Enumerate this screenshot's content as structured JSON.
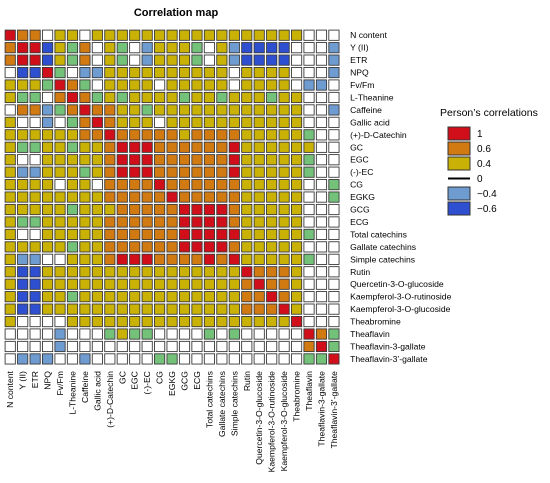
{
  "chart_data": {
    "type": "heatmap",
    "title": "Correlation map",
    "legend": {
      "title": "Person’s correlations",
      "position": "right",
      "entries": [
        {
          "label": "1",
          "color": "#d10f1b"
        },
        {
          "label": "0.6",
          "color": "#d27a12"
        },
        {
          "label": "0.4",
          "color": "#c9b205"
        },
        {
          "label": "0",
          "color": "#ffffff"
        },
        {
          "label": "−0.4",
          "color": "#6e9bd0"
        },
        {
          "label": "−0.6",
          "color": "#2f4fd1"
        }
      ]
    },
    "variables": [
      "N content",
      "Y (II)",
      "ETR",
      "NPQ",
      "Fv/Fm",
      "L-Theanine",
      "Caffeine",
      "Gallic acid",
      "(+)-D-Catechin",
      "GC",
      "EGC",
      "(-)-EC",
      "CG",
      "EGKG",
      "GCG",
      "ECG",
      "Total catechins",
      "Gallate catechins",
      "Simple catechins",
      "Rutin",
      "Quercetin-3-O-glucoside",
      "Kaempferol-3-O-rutinoside",
      "Kaempferol-3-O-glucoside",
      "Theabromine",
      "Theaflavin",
      "Theaflavin-3-gallate",
      "Theaflavin-3’-gallate"
    ],
    "matrix": [
      [
        1.0,
        0.6,
        0.6,
        0.0,
        0.45,
        0.45,
        0.0,
        0.5,
        0.5,
        0.45,
        0.5,
        0.45,
        0.5,
        0.5,
        0.45,
        0.45,
        0.5,
        0.5,
        0.45,
        0.5,
        0.5,
        0.5,
        0.45,
        0.5,
        0.0,
        0.0,
        0.0
      ],
      [
        0.6,
        1.0,
        1.0,
        -0.5,
        0.45,
        0.3,
        0.6,
        0.0,
        0.45,
        0.3,
        0.0,
        -0.3,
        0.4,
        0.45,
        0.45,
        0.3,
        0.0,
        0.45,
        -0.3,
        -0.45,
        -0.45,
        -0.6,
        -0.5,
        0.0,
        0.0,
        0.0,
        -0.3
      ],
      [
        0.6,
        1.0,
        1.0,
        -0.5,
        0.45,
        0.3,
        0.6,
        0.0,
        0.45,
        0.3,
        0.0,
        -0.3,
        0.4,
        0.45,
        0.45,
        0.3,
        0.0,
        0.45,
        -0.3,
        -0.45,
        -0.45,
        -0.6,
        -0.5,
        0.0,
        0.0,
        0.0,
        -0.3
      ],
      [
        0.0,
        -0.5,
        -0.5,
        1.0,
        0.3,
        0.0,
        -0.3,
        -0.3,
        0.4,
        0.45,
        0.45,
        0.4,
        0.45,
        0.45,
        0.45,
        0.4,
        0.45,
        0.45,
        0.0,
        0.45,
        0.45,
        0.45,
        0.45,
        0.0,
        0.0,
        0.0,
        -0.3
      ],
      [
        0.45,
        0.45,
        0.45,
        0.3,
        1.0,
        0.6,
        0.3,
        0.0,
        0.45,
        0.45,
        0.4,
        0.45,
        0.0,
        0.45,
        0.45,
        0.45,
        0.45,
        0.45,
        0.0,
        0.45,
        0.45,
        0.45,
        0.45,
        0.0,
        -0.3,
        -0.3,
        0.0
      ],
      [
        0.45,
        0.3,
        0.3,
        0.0,
        0.6,
        1.0,
        0.6,
        0.3,
        0.45,
        0.3,
        0.45,
        0.45,
        0.45,
        0.4,
        0.3,
        0.45,
        0.45,
        0.3,
        0.45,
        0.45,
        0.45,
        0.3,
        0.45,
        0.45,
        0.0,
        0.0,
        0.0
      ],
      [
        0.0,
        0.6,
        0.6,
        -0.3,
        0.3,
        0.6,
        1.0,
        0.6,
        0.6,
        0.45,
        0.45,
        0.3,
        0.45,
        0.45,
        0.45,
        0.45,
        0.45,
        0.45,
        0.45,
        0.45,
        0.45,
        0.45,
        0.45,
        0.45,
        0.0,
        0.0,
        -0.3
      ],
      [
        0.5,
        0.0,
        0.0,
        -0.3,
        0.0,
        0.3,
        0.6,
        1.0,
        0.6,
        0.45,
        0.45,
        0.45,
        0.0,
        0.45,
        0.45,
        0.45,
        0.45,
        0.45,
        0.45,
        0.45,
        0.45,
        0.45,
        0.45,
        0.45,
        0.0,
        0.0,
        0.0
      ],
      [
        0.5,
        0.45,
        0.45,
        0.4,
        0.45,
        0.45,
        0.6,
        0.6,
        1.0,
        0.6,
        0.6,
        0.6,
        0.6,
        0.6,
        0.45,
        0.6,
        0.6,
        0.6,
        0.6,
        0.45,
        0.45,
        0.45,
        0.45,
        0.45,
        0.3,
        0.0,
        0.0
      ],
      [
        0.45,
        0.3,
        0.3,
        0.45,
        0.45,
        0.3,
        0.45,
        0.45,
        0.6,
        1.0,
        0.9,
        0.9,
        0.6,
        0.6,
        0.6,
        0.6,
        0.6,
        0.6,
        0.9,
        0.45,
        0.45,
        0.45,
        0.45,
        0.45,
        0.45,
        0.0,
        0.0
      ],
      [
        0.5,
        0.0,
        0.0,
        0.45,
        0.4,
        0.45,
        0.45,
        0.45,
        0.6,
        0.9,
        1.0,
        0.9,
        0.6,
        0.6,
        0.6,
        0.6,
        0.6,
        0.6,
        0.9,
        0.45,
        0.45,
        0.45,
        0.45,
        0.45,
        0.3,
        0.0,
        0.0
      ],
      [
        0.45,
        -0.3,
        -0.3,
        0.4,
        0.45,
        0.45,
        0.3,
        0.45,
        0.6,
        0.9,
        0.9,
        1.0,
        0.6,
        0.6,
        0.6,
        0.6,
        0.6,
        0.6,
        0.9,
        0.45,
        0.45,
        0.45,
        0.45,
        0.45,
        0.3,
        0.0,
        0.0
      ],
      [
        0.5,
        0.4,
        0.4,
        0.45,
        0.0,
        0.45,
        0.45,
        0.0,
        0.6,
        0.6,
        0.6,
        0.6,
        1.0,
        0.6,
        0.6,
        0.6,
        0.6,
        0.6,
        0.6,
        0.45,
        0.45,
        0.45,
        0.45,
        0.45,
        0.0,
        0.0,
        0.3
      ],
      [
        0.5,
        0.45,
        0.45,
        0.45,
        0.45,
        0.4,
        0.45,
        0.45,
        0.6,
        0.6,
        0.6,
        0.6,
        0.6,
        1.0,
        0.6,
        0.6,
        0.6,
        0.6,
        0.6,
        0.45,
        0.45,
        0.45,
        0.45,
        0.45,
        0.0,
        0.0,
        0.3
      ],
      [
        0.45,
        0.45,
        0.45,
        0.45,
        0.45,
        0.3,
        0.45,
        0.45,
        0.45,
        0.6,
        0.6,
        0.6,
        0.6,
        0.6,
        1.0,
        0.9,
        0.9,
        0.9,
        0.6,
        0.45,
        0.45,
        0.45,
        0.45,
        0.45,
        0.0,
        0.0,
        0.0
      ],
      [
        0.45,
        0.3,
        0.3,
        0.4,
        0.45,
        0.45,
        0.45,
        0.45,
        0.6,
        0.6,
        0.6,
        0.6,
        0.6,
        0.6,
        0.9,
        1.0,
        0.9,
        0.9,
        0.6,
        0.45,
        0.45,
        0.45,
        0.45,
        0.45,
        0.0,
        0.0,
        0.0
      ],
      [
        0.5,
        0.0,
        0.0,
        0.45,
        0.45,
        0.45,
        0.45,
        0.45,
        0.6,
        0.6,
        0.6,
        0.6,
        0.6,
        0.6,
        0.9,
        0.9,
        1.0,
        0.9,
        0.9,
        0.45,
        0.45,
        0.45,
        0.45,
        0.45,
        0.3,
        0.0,
        0.0
      ],
      [
        0.5,
        0.45,
        0.45,
        0.45,
        0.45,
        0.3,
        0.45,
        0.45,
        0.6,
        0.6,
        0.6,
        0.6,
        0.6,
        0.6,
        0.9,
        0.9,
        0.9,
        1.0,
        0.6,
        0.45,
        0.45,
        0.45,
        0.45,
        0.45,
        0.0,
        0.0,
        0.0
      ],
      [
        0.45,
        -0.3,
        -0.3,
        0.0,
        0.0,
        0.45,
        0.45,
        0.45,
        0.6,
        0.9,
        0.9,
        0.9,
        0.6,
        0.6,
        0.6,
        0.6,
        0.9,
        0.6,
        1.0,
        0.45,
        0.45,
        0.45,
        0.45,
        0.45,
        0.3,
        0.0,
        0.0
      ],
      [
        0.5,
        -0.45,
        -0.45,
        0.45,
        0.45,
        0.45,
        0.45,
        0.45,
        0.45,
        0.45,
        0.45,
        0.45,
        0.45,
        0.45,
        0.45,
        0.45,
        0.45,
        0.45,
        0.45,
        1.0,
        0.6,
        0.6,
        0.6,
        0.45,
        0.0,
        0.0,
        0.0
      ],
      [
        0.5,
        -0.45,
        -0.45,
        0.45,
        0.45,
        0.45,
        0.45,
        0.45,
        0.45,
        0.45,
        0.45,
        0.45,
        0.45,
        0.45,
        0.45,
        0.45,
        0.45,
        0.45,
        0.45,
        0.6,
        1.0,
        0.6,
        0.6,
        0.45,
        0.0,
        0.0,
        0.0
      ],
      [
        0.5,
        -0.6,
        -0.6,
        0.45,
        0.45,
        0.3,
        0.45,
        0.45,
        0.45,
        0.45,
        0.45,
        0.45,
        0.45,
        0.45,
        0.45,
        0.45,
        0.45,
        0.45,
        0.45,
        0.6,
        0.6,
        1.0,
        0.6,
        0.45,
        0.0,
        0.0,
        0.0
      ],
      [
        0.45,
        -0.5,
        -0.5,
        0.45,
        0.45,
        0.45,
        0.45,
        0.45,
        0.45,
        0.45,
        0.45,
        0.45,
        0.45,
        0.45,
        0.45,
        0.45,
        0.45,
        0.45,
        0.45,
        0.6,
        0.6,
        0.6,
        1.0,
        0.45,
        0.0,
        0.0,
        0.0
      ],
      [
        0.5,
        0.0,
        0.0,
        0.0,
        0.0,
        0.45,
        0.45,
        0.45,
        0.45,
        0.45,
        0.45,
        0.45,
        0.45,
        0.45,
        0.45,
        0.45,
        0.45,
        0.45,
        0.45,
        0.45,
        0.45,
        0.45,
        0.45,
        1.0,
        0.0,
        0.0,
        0.0
      ],
      [
        0.0,
        0.0,
        0.0,
        0.0,
        -0.3,
        0.0,
        0.0,
        0.0,
        0.3,
        0.45,
        0.3,
        0.3,
        0.0,
        0.0,
        0.0,
        0.0,
        0.3,
        0.0,
        0.3,
        0.0,
        0.0,
        0.0,
        0.0,
        0.0,
        1.0,
        0.6,
        0.3
      ],
      [
        0.0,
        0.0,
        0.0,
        0.0,
        -0.3,
        0.0,
        0.0,
        0.0,
        0.0,
        0.0,
        0.0,
        0.0,
        0.0,
        0.0,
        0.0,
        0.0,
        0.0,
        0.0,
        0.0,
        0.0,
        0.0,
        0.0,
        0.0,
        0.0,
        0.6,
        1.0,
        0.3
      ],
      [
        0.0,
        -0.3,
        -0.3,
        -0.3,
        0.0,
        0.0,
        -0.3,
        0.0,
        0.0,
        0.0,
        0.0,
        0.0,
        0.3,
        0.3,
        0.0,
        0.0,
        0.0,
        0.0,
        0.0,
        0.0,
        0.0,
        0.0,
        0.0,
        0.0,
        0.3,
        0.3,
        1.0
      ]
    ]
  }
}
